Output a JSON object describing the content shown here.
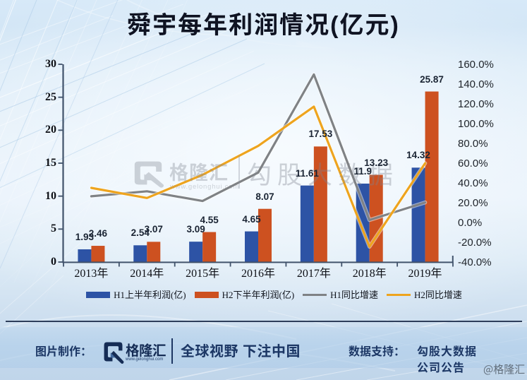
{
  "title": "舜宇每年利润情况(亿元)",
  "chart_data": {
    "type": "bar+line",
    "title": "舜宇每年利润情况(亿元)",
    "categories": [
      "2013年",
      "2014年",
      "2015年",
      "2016年",
      "2017年",
      "2018年",
      "2019年"
    ],
    "series": [
      {
        "name": "H1上半年利润(亿)",
        "type": "bar",
        "color": "#2d53a5",
        "values": [
          1.93,
          2.54,
          3.09,
          4.65,
          11.61,
          11.9,
          14.32
        ],
        "labels": [
          "1.93",
          "2.54",
          "3.09",
          "4.65",
          "11.61",
          "11.9",
          "14.32"
        ]
      },
      {
        "name": "H2下半年利润(亿)",
        "type": "bar",
        "color": "#cd5120",
        "values": [
          2.46,
          3.07,
          4.55,
          8.07,
          17.53,
          13.23,
          25.87
        ],
        "labels": [
          "2.46",
          "3.07",
          "4.55",
          "8.07",
          "17.53",
          "13.23",
          "25.87"
        ]
      },
      {
        "name": "H1同比增速",
        "type": "line",
        "axis": "right",
        "color": "#7f8285",
        "values_pct": [
          26.5,
          31.6,
          21.7,
          50.5,
          149.7,
          2.5,
          20.3
        ]
      },
      {
        "name": "H2同比增速",
        "type": "line",
        "axis": "right",
        "color": "#eea41e",
        "values_pct": [
          35.0,
          24.8,
          48.2,
          77.4,
          117.2,
          -24.5,
          59.9
        ]
      }
    ],
    "left_axis": {
      "min": 0,
      "max": 30,
      "step": 5,
      "tick_labels": [
        "0",
        "5",
        "10",
        "15",
        "20",
        "25",
        "30"
      ]
    },
    "right_axis": {
      "min": -40,
      "max": 160,
      "step": 20,
      "tick_labels": [
        "-40.0%",
        "-20.0%",
        "0.0%",
        "20.0%",
        "40.0%",
        "60.0%",
        "80.0%",
        "100.0%",
        "120.0%",
        "140.0%",
        "160.0%"
      ]
    },
    "grid": false,
    "legend_position": "bottom"
  },
  "watermark": {
    "brand": "格隆汇",
    "brand_url": "www.gelonghui.com",
    "text": "勾股大数据"
  },
  "footer": {
    "made_by_label": "图片制作：",
    "brand": "格隆汇",
    "brand_url": "www.gelonghui.com",
    "slogan": "全球视野 下注中国",
    "data_support_label": "数据支持：",
    "source_line1": "勾股大数据",
    "source_line2": "公司公告",
    "corner_stamp": "@格隆汇"
  },
  "colors": {
    "bar_h1": "#2d53a5",
    "bar_h2": "#cd5120",
    "line_h1": "#7f8285",
    "line_h2": "#eea41e",
    "axis": "#41536b",
    "title_text": "#0f1322",
    "footer_text": "#1c3765"
  }
}
